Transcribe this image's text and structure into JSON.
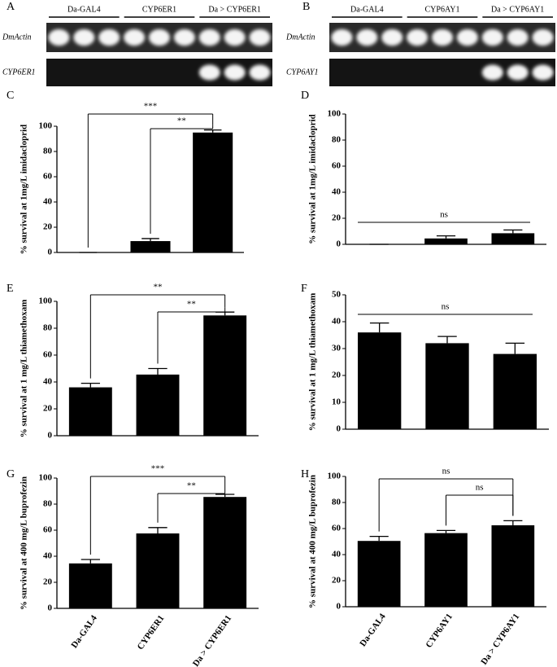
{
  "gels": [
    {
      "panel": "A",
      "groups": [
        "Da-GAL4",
        "CYP6ER1",
        "Da > CYP6ER1"
      ],
      "rows": [
        "DmActin",
        "CYP6ER1"
      ]
    },
    {
      "panel": "B",
      "groups": [
        "Da-GAL4",
        "CYP6AY1",
        "Da > CYP6AY1"
      ],
      "rows": [
        "DmActin",
        "CYP6AY1"
      ]
    }
  ],
  "chart_data": [
    {
      "type": "bar",
      "panel": "C",
      "y_label": "% survival at 1mg/L imidacloprid",
      "categories": [
        null,
        null,
        null
      ],
      "values": [
        0,
        9,
        95
      ],
      "errors": [
        0,
        2,
        2
      ],
      "color": "#000000",
      "ylim": [
        0,
        100
      ],
      "yticks": [
        0,
        20,
        40,
        60,
        80,
        100
      ],
      "annotations": [
        {
          "text": "***",
          "from": 0,
          "to": 2
        },
        {
          "text": "**",
          "from": 1,
          "to": 2
        }
      ]
    },
    {
      "type": "bar",
      "panel": "D",
      "y_label": "% survival at 1mg/L imidacloprid",
      "categories": [
        null,
        null,
        null
      ],
      "values": [
        0,
        4.5,
        8.5
      ],
      "errors": [
        0,
        2,
        2.5
      ],
      "color": "#000000",
      "ylim": [
        0,
        100
      ],
      "yticks": [
        0,
        20,
        40,
        60,
        80,
        100
      ],
      "annotations": [
        {
          "text": "ns",
          "from": 0,
          "to": 2
        }
      ]
    },
    {
      "type": "bar",
      "panel": "E",
      "y_label": "% survival at 1 mg/L thiamethoxam",
      "categories": [
        null,
        null,
        null
      ],
      "values": [
        36,
        45.5,
        89.5
      ],
      "errors": [
        3,
        4.5,
        2.5
      ],
      "color": "#000000",
      "ylim": [
        0,
        100
      ],
      "yticks": [
        0,
        20,
        40,
        60,
        80,
        100
      ],
      "annotations": [
        {
          "text": "**",
          "from": 0,
          "to": 2
        },
        {
          "text": "**",
          "from": 1,
          "to": 2
        }
      ]
    },
    {
      "type": "bar",
      "panel": "F",
      "y_label": "% survival at 1 mg/L thiamethoxam",
      "categories": [
        null,
        null,
        null
      ],
      "values": [
        36,
        32,
        28
      ],
      "errors": [
        3.5,
        2.5,
        4
      ],
      "color": "#000000",
      "ylim": [
        0,
        50
      ],
      "yticks": [
        0,
        10,
        20,
        30,
        40,
        50
      ],
      "annotations": [
        {
          "text": "ns",
          "from": 0,
          "to": 2
        }
      ]
    },
    {
      "type": "bar",
      "panel": "G",
      "y_label": "% survival at 400 mg/L buprofezin",
      "categories": [
        "Da-GAL4",
        "CYP6ER1",
        "Da > CYP6ER1"
      ],
      "values": [
        34.5,
        57.5,
        85.5
      ],
      "errors": [
        3,
        4.5,
        2
      ],
      "color": "#000000",
      "ylim": [
        0,
        100
      ],
      "yticks": [
        0,
        20,
        40,
        60,
        80,
        100
      ],
      "annotations": [
        {
          "text": "***",
          "from": 0,
          "to": 2
        },
        {
          "text": "**",
          "from": 1,
          "to": 2
        }
      ]
    },
    {
      "type": "bar",
      "panel": "H",
      "y_label": "% survival at 400 mg/L buprofezin",
      "categories": [
        "Da-GAL4",
        "CYP6AY1",
        "Da > CYP6AY1"
      ],
      "values": [
        50.5,
        56.5,
        62.5
      ],
      "errors": [
        3.5,
        2,
        3.5
      ],
      "color": "#000000",
      "ylim": [
        0,
        100
      ],
      "yticks": [
        0,
        20,
        40,
        60,
        80,
        100
      ],
      "annotations": [
        {
          "text": "ns",
          "from": 0,
          "to": 2
        },
        {
          "text": "ns",
          "from": 1,
          "to": 2
        }
      ]
    }
  ]
}
